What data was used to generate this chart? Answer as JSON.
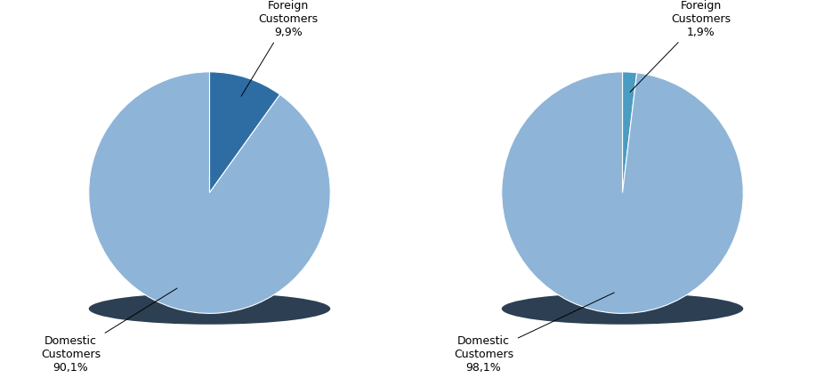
{
  "chart1": {
    "values": [
      9.9,
      90.1
    ],
    "labels": [
      "Foreign\nCustomers\n9,9%",
      "Domestic\nCustomers\n90,1%"
    ],
    "colors": [
      "#2E6DA4",
      "#8EB4D8"
    ],
    "shadow_color": "#2d3f52",
    "startangle": 90
  },
  "chart2": {
    "values": [
      1.9,
      98.1
    ],
    "labels": [
      "Foreign\nCustomers\n1,9%",
      "Domestic\nCustomers\n98,1%"
    ],
    "colors": [
      "#4B9CC2",
      "#8EB4D8"
    ],
    "shadow_color": "#2d3f52",
    "startangle": 90
  },
  "background_color": "#ffffff",
  "text_color": "#000000",
  "font_size": 9
}
